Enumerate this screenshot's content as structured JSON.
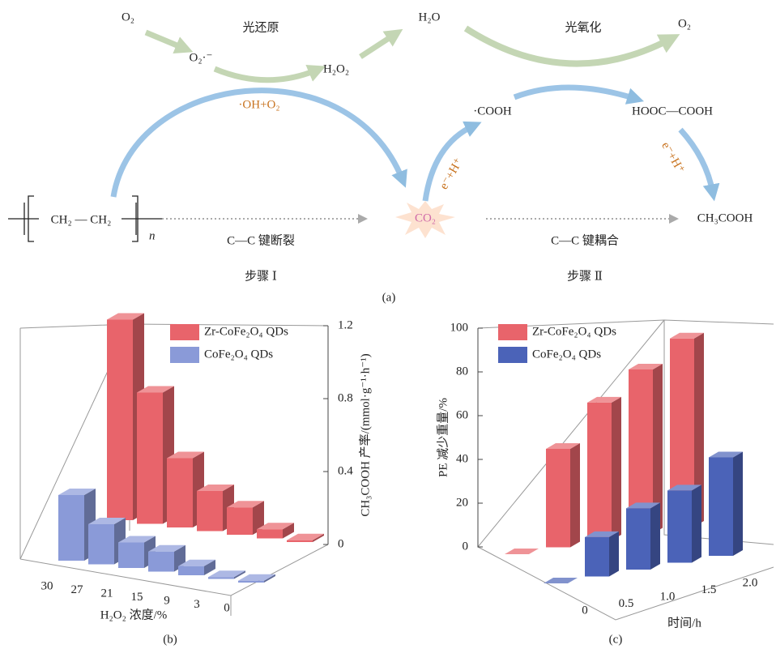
{
  "diagram": {
    "o2_left": "O₂",
    "photoreduction": "光还原",
    "superoxide": "O₂·⁻",
    "h2o2": "H₂O₂",
    "h2o": "H₂O",
    "photooxidation": "光氧化",
    "o2_right": "O₂",
    "oh_o2": "·OH+O₂",
    "cooh": "·COOH",
    "oxalic": "HOOC—COOH",
    "eh_left": "e⁻+H⁺",
    "eh_right": "e⁻+H⁺",
    "polymer": "CH₂ — CH₂",
    "polymer_n": "n",
    "co2": "CO₂",
    "acetic": "CH₃COOH",
    "cleavage": "C—C 键断裂",
    "coupling": "C—C 键耦合",
    "step1": "步骤 Ⅰ",
    "step2": "步骤 Ⅱ",
    "caption": "(a)"
  },
  "chart_data": [
    {
      "type": "bar",
      "caption": "(b)",
      "xlabel": "H₂O₂ 浓度/%",
      "ylabel": "CH₃COOH 产率/(mmol·g⁻¹·h⁻¹)",
      "categories": [
        "30",
        "27",
        "21",
        "15",
        "9",
        "3",
        "0"
      ],
      "series": [
        {
          "name": "Zr-CoFe₂O₄ QDs",
          "color": "#e8646b",
          "values": [
            1.1,
            0.72,
            0.38,
            0.22,
            0.15,
            0.05,
            0.01
          ]
        },
        {
          "name": "CoFe₂O₄ QDs",
          "color": "#8a9ad8",
          "values": [
            0.36,
            0.22,
            0.14,
            0.11,
            0.05,
            0.01,
            0.01
          ]
        }
      ],
      "ylim": [
        0,
        1.2
      ],
      "yticks": [
        0,
        0.4,
        0.8,
        1.2
      ]
    },
    {
      "type": "bar",
      "caption": "(c)",
      "xlabel": "时间/h",
      "ylabel": "PE 减少重量/%",
      "categories": [
        "0",
        "0.5",
        "1.0",
        "1.5",
        "2.0"
      ],
      "series": [
        {
          "name": "Zr-CoFe₂O₄ QDs",
          "color": "#e8646b",
          "values": [
            0,
            45,
            63,
            75,
            86
          ]
        },
        {
          "name": "CoFe₂O₄ QDs",
          "color": "#4b63b8",
          "values": [
            0,
            18,
            28,
            33,
            45
          ]
        }
      ],
      "ylim": [
        0,
        100
      ],
      "yticks": [
        0,
        20,
        40,
        60,
        80,
        100
      ]
    }
  ]
}
